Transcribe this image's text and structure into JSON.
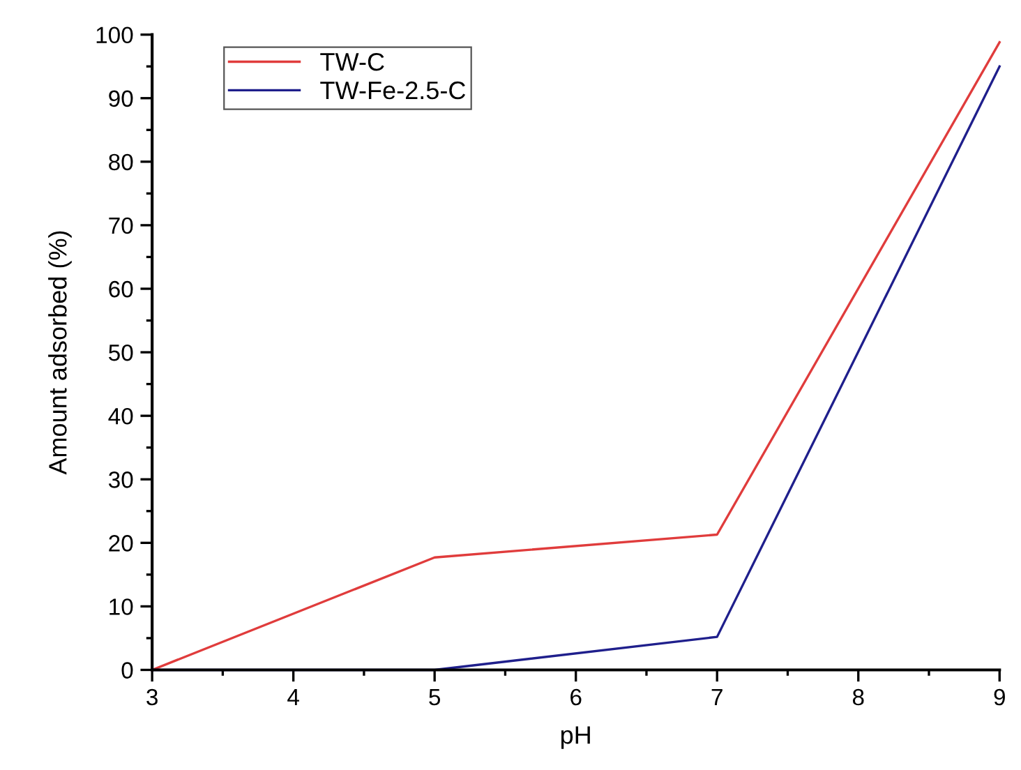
{
  "chart_data": {
    "type": "line",
    "xlabel": "pH",
    "ylabel": "Amount adsorbed (%)",
    "x": [
      3,
      5,
      7,
      9
    ],
    "series": [
      {
        "name": "TW-C",
        "color": "#e03c3c",
        "values": [
          0,
          17.7,
          21.3,
          98.8
        ]
      },
      {
        "name": "TW-Fe-2.5-C",
        "color": "#1f1f8c",
        "values": [
          0,
          0,
          5.2,
          95
        ]
      }
    ],
    "xlim": [
      3,
      9
    ],
    "xticks": [
      3,
      4,
      5,
      6,
      7,
      8,
      9
    ],
    "ylim": [
      0,
      100
    ],
    "yticks": [
      0,
      10,
      20,
      30,
      40,
      50,
      60,
      70,
      80,
      90,
      100
    ],
    "grid": false,
    "legend": "top left",
    "marker": "none",
    "line_style": "solid"
  }
}
